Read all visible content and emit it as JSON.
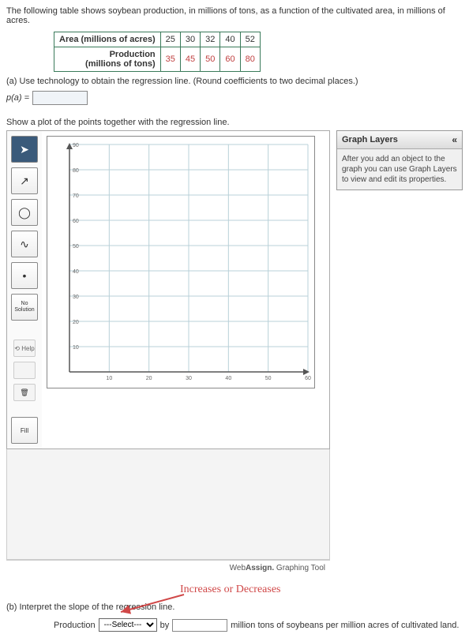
{
  "intro": "The following table shows soybean production, in millions of tons, as a function of the cultivated area, in millions of acres.",
  "table": {
    "row1_label": "Area (millions of acres)",
    "row2_label": "Production\n(millions of tons)",
    "area": [
      "25",
      "30",
      "32",
      "40",
      "52"
    ],
    "prod": [
      "35",
      "45",
      "50",
      "60",
      "80"
    ]
  },
  "part_a": "(a) Use technology to obtain the regression line. (Round coefficients to two decimal places.)",
  "formula_lhs": "p(a) =",
  "plot_instruction": "Show a plot of the points together with the regression line.",
  "toolbar": {
    "pointer": "➤",
    "line": "↗",
    "circle": "◯",
    "curve": "∿",
    "dot": "•",
    "no_solution": "No\nSolution",
    "help": "⟲ Help",
    "undo": "",
    "trash": "🗑",
    "fill": "Fill"
  },
  "chart": {
    "type": "scatter-grid",
    "xlim": [
      0,
      60
    ],
    "ylim": [
      0,
      90
    ],
    "xtick_step": 10,
    "ytick_step": 10,
    "xticks": [
      "10",
      "20",
      "30",
      "40",
      "50",
      "60"
    ],
    "yticks": [
      "10",
      "20",
      "30",
      "40",
      "50",
      "60",
      "70",
      "80",
      "90"
    ],
    "grid_color": "#b8d0d8",
    "axis_color": "#555",
    "background_color": "#ffffff",
    "tick_fontsize": 7
  },
  "footer": {
    "brand_bold": "Assign.",
    "brand_pre": "Web",
    "tool": " Graphing Tool"
  },
  "layers": {
    "title": "Graph Layers",
    "chevron": "«",
    "body": "After you add an object to the graph you can use Graph Layers to view and edit its properties."
  },
  "annotation": "Increases or Decreases",
  "part_b": "(b) Interpret the slope of the regression line.",
  "answer": {
    "pre": "Production",
    "select_placeholder": "---Select---",
    "by": "by",
    "post": "million tons of soybeans per million acres of cultivated land."
  },
  "colors": {
    "table_border": "#3a7a5a",
    "val_red": "#c04040",
    "anno_red": "#d04848"
  }
}
